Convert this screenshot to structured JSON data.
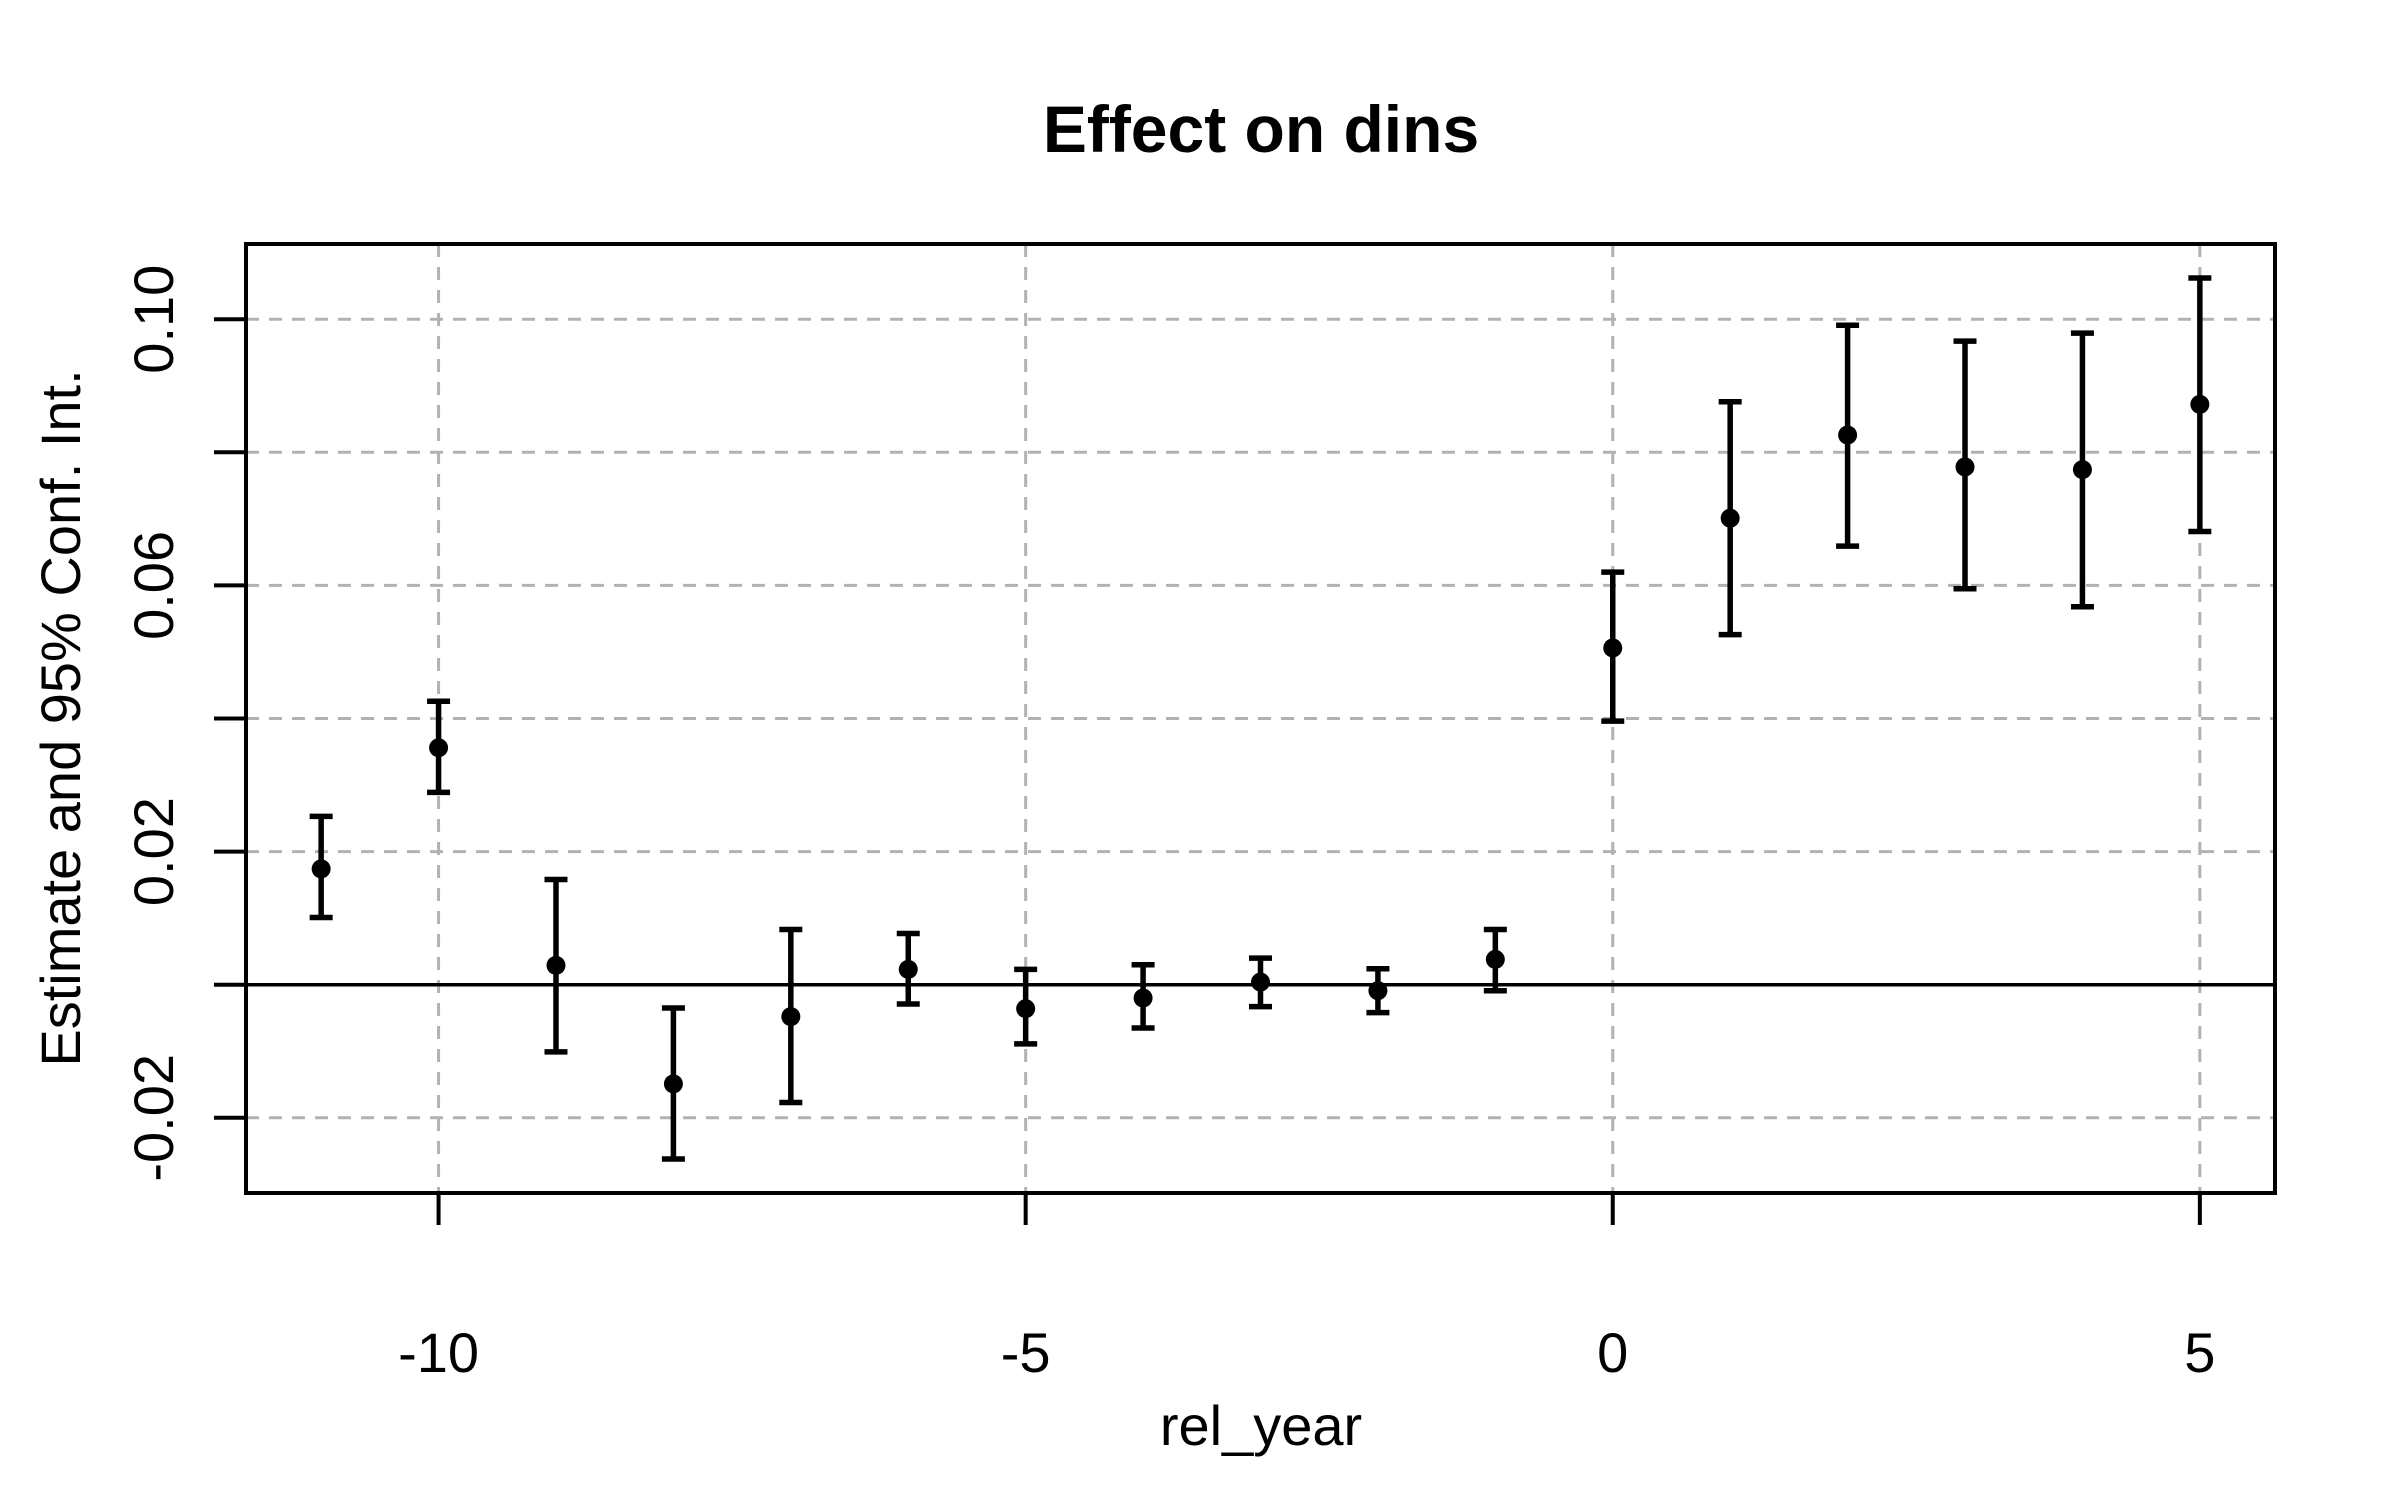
{
  "title": "Effect on dins",
  "chart_data": {
    "type": "scatter",
    "subtype": "point-estimates-with-95ci-error-bars",
    "title": "Effect on dins",
    "xlabel": "rel_year",
    "ylabel": "Estimate and 95% Conf. Int.",
    "x": [
      -11,
      -10,
      -9,
      -8,
      -7,
      -6,
      -5,
      -4,
      -3,
      -2,
      -1,
      0,
      1,
      2,
      3,
      4,
      5
    ],
    "series": [
      {
        "name": "estimate",
        "values": [
          0.0174,
          0.0356,
          0.0029,
          -0.0149,
          -0.0048,
          0.0023,
          -0.0036,
          -0.002,
          0.0004,
          -0.0009,
          0.0038,
          0.0506,
          0.0701,
          0.0826,
          0.0778,
          0.0774,
          0.0872
        ]
      },
      {
        "name": "ci_lower",
        "values": [
          0.0101,
          0.0289,
          -0.0101,
          -0.0262,
          -0.0177,
          -0.0029,
          -0.0089,
          -0.0065,
          -0.0033,
          -0.0042,
          -0.0009,
          0.0396,
          0.0526,
          0.0659,
          0.0595,
          0.0568,
          0.0681
        ]
      },
      {
        "name": "ci_upper",
        "values": [
          0.0253,
          0.0426,
          0.0158,
          -0.0035,
          0.0083,
          0.0077,
          0.0023,
          0.003,
          0.004,
          0.0024,
          0.0083,
          0.062,
          0.0876,
          0.0991,
          0.0967,
          0.0979,
          0.1062
        ]
      }
    ],
    "xlim": [
      -11.64,
      5.64
    ],
    "ylim": [
      -0.0313,
      0.1113
    ],
    "x_axis": {
      "ticks": [
        {
          "value": -10,
          "label": "-10"
        },
        {
          "value": -5,
          "label": "-5"
        },
        {
          "value": 0,
          "label": "0"
        },
        {
          "value": 5,
          "label": "5"
        }
      ]
    },
    "y_axis": {
      "tick_values": [
        -0.02,
        0,
        0.02,
        0.04,
        0.06,
        0.08,
        0.1
      ],
      "labeled_ticks": [
        {
          "value": -0.02,
          "label": "-0.02"
        },
        {
          "value": 0.02,
          "label": "0.02"
        },
        {
          "value": 0.06,
          "label": "0.06"
        },
        {
          "value": 0.1,
          "label": "0.10"
        }
      ]
    },
    "grid": {
      "show": true,
      "style": "dashed",
      "color": "#b2b2b2"
    },
    "reference_line_y": 0,
    "legend": "none",
    "colors": {
      "point": "#000000",
      "error_bar": "#000000",
      "box_border": "#000000",
      "reference_line": "#000000",
      "gridline": "#b2b2b2",
      "background": "#ffffff"
    }
  }
}
